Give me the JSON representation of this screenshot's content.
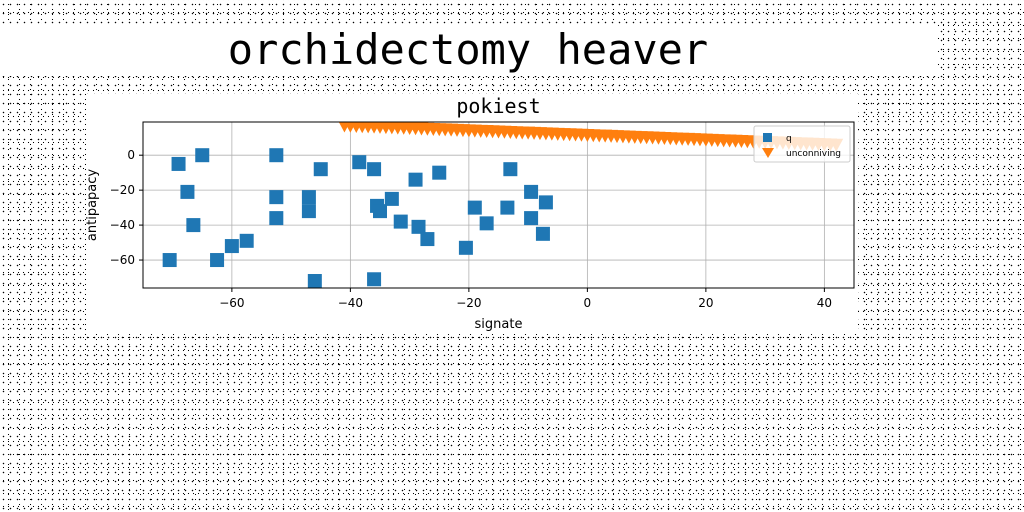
{
  "page_title": "orchidectomy heaver",
  "chart_data": {
    "type": "scatter",
    "title": "pokiest",
    "xlabel": "signate",
    "ylabel": "antipapacy",
    "xlim": [
      -75,
      45
    ],
    "ylim": [
      -76,
      19
    ],
    "xticks": [
      -60,
      -40,
      -20,
      0,
      20,
      40
    ],
    "yticks": [
      0,
      -20,
      -40,
      -60
    ],
    "grid": true,
    "legend_position": "top-right",
    "series": [
      {
        "name": "q",
        "marker": "square",
        "color": "#1f77b4",
        "points": [
          [
            -70.5,
            -60
          ],
          [
            -69,
            -5
          ],
          [
            -67.5,
            -21
          ],
          [
            -66.5,
            -40
          ],
          [
            -65,
            0
          ],
          [
            -62.5,
            -60
          ],
          [
            -60,
            -52
          ],
          [
            -57.5,
            -49
          ],
          [
            -52.5,
            0
          ],
          [
            -52.5,
            -24
          ],
          [
            -52.5,
            -36
          ],
          [
            -47,
            -24
          ],
          [
            -47,
            -32
          ],
          [
            -46,
            -72
          ],
          [
            -45,
            -8
          ],
          [
            -38.5,
            -4
          ],
          [
            -36,
            -8
          ],
          [
            -36,
            -71
          ],
          [
            -35.5,
            -29
          ],
          [
            -35,
            -32
          ],
          [
            -33,
            -25
          ],
          [
            -31.5,
            -38
          ],
          [
            -29,
            -14
          ],
          [
            -28.5,
            -41
          ],
          [
            -27,
            -48
          ],
          [
            -25,
            -10
          ],
          [
            -20.5,
            -53
          ],
          [
            -19,
            -30
          ],
          [
            -17,
            -39
          ],
          [
            -13.5,
            -30
          ],
          [
            -13,
            -8
          ],
          [
            -9.5,
            -21
          ],
          [
            -9.5,
            -36
          ],
          [
            -7.5,
            -45
          ],
          [
            -7,
            -27
          ]
        ]
      },
      {
        "name": "unconniving",
        "marker": "triangle_down",
        "color": "#ff7f0e",
        "x_start": -41,
        "x_end": 42,
        "x_step": 1,
        "y_start": 17,
        "y_end": 6
      }
    ]
  }
}
